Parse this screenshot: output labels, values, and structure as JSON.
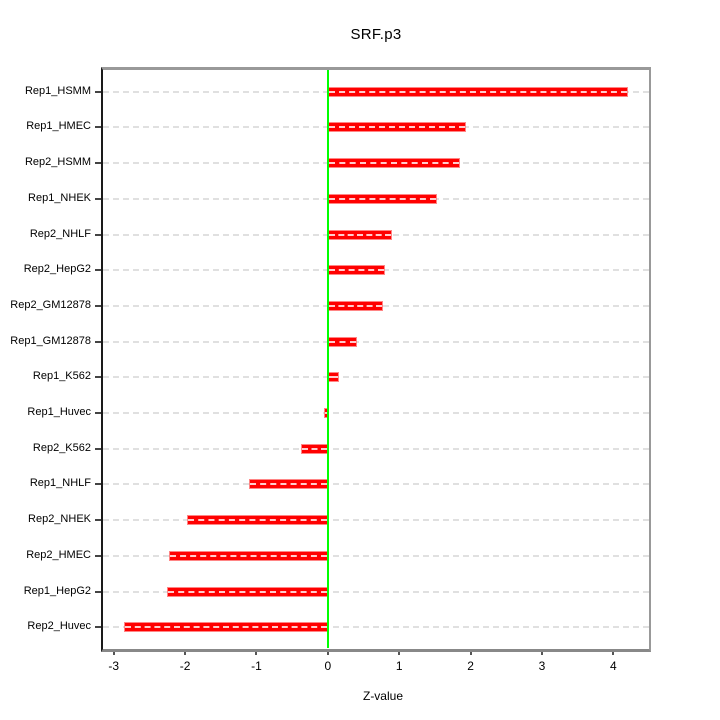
{
  "title": "SRF.p3",
  "chart_data": {
    "type": "bar",
    "orientation": "horizontal",
    "title": "SRF.p3",
    "xlabel": "Z-value",
    "ylabel": "",
    "categories": [
      "Rep1_HSMM",
      "Rep1_HMEC",
      "Rep2_HSMM",
      "Rep1_NHEK",
      "Rep2_NHLF",
      "Rep2_HepG2",
      "Rep2_GM12878",
      "Rep1_GM12878",
      "Rep1_K562",
      "Rep1_Huvec",
      "Rep2_K562",
      "Rep1_NHLF",
      "Rep2_NHEK",
      "Rep2_HMEC",
      "Rep1_HepG2",
      "Rep2_Huvec"
    ],
    "values": [
      4.2,
      1.94,
      1.85,
      1.53,
      0.9,
      0.8,
      0.78,
      0.41,
      0.15,
      -0.06,
      -0.37,
      -1.11,
      -1.97,
      -2.22,
      -2.26,
      -2.86
    ],
    "xlim": [
      -3.15,
      4.5
    ],
    "xticks": [
      -3,
      -2,
      -1,
      0,
      1,
      2,
      3,
      4
    ],
    "grid": "horizontal-dashed-per-category",
    "legend": "none",
    "bar_color": "#ff0000",
    "bar_border_color": "#ff8585",
    "zero_line_color": "#00ff00",
    "gridline_color": "#e0e0e0",
    "box_color": "#999999",
    "axis_color": "#1a1a1a"
  }
}
